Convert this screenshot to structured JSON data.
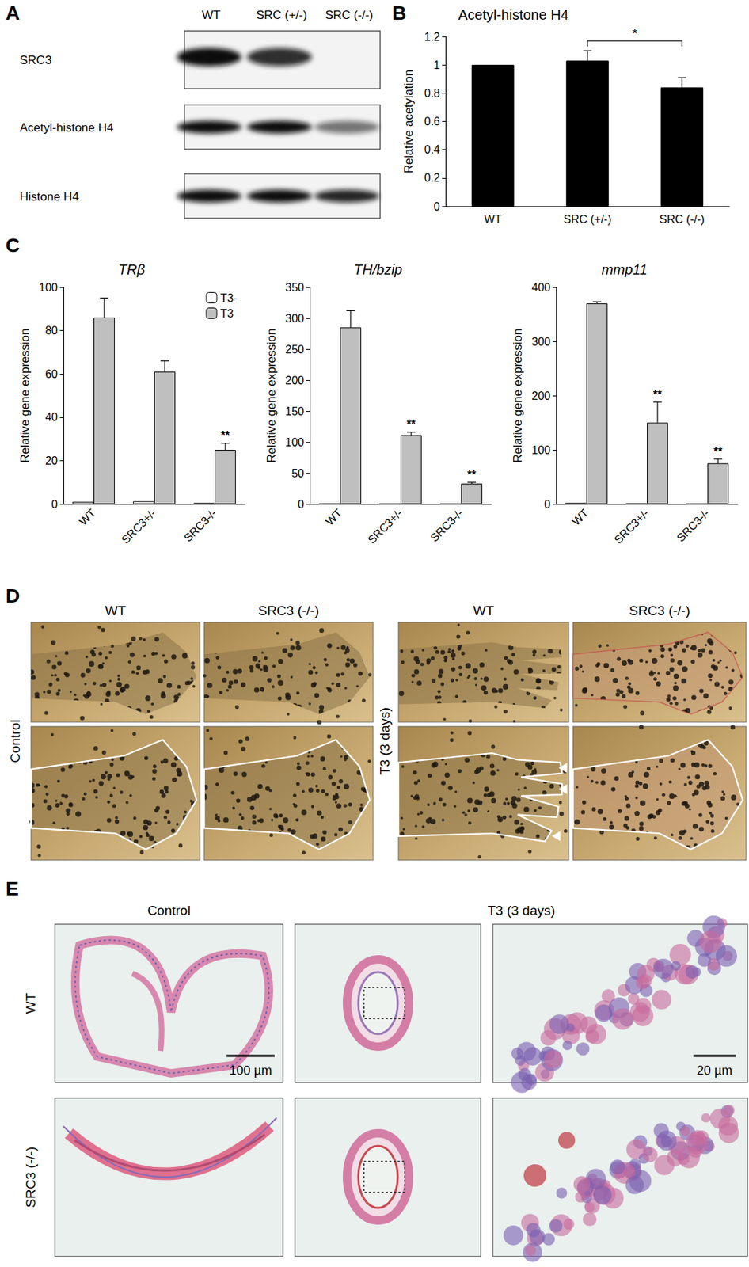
{
  "blot": {
    "panel": "A",
    "lanes": [
      "WT",
      "SRC (+/-)",
      "SRC (-/-)"
    ],
    "rows": [
      "SRC3",
      "Acetyl-histone H4",
      "Histone H4"
    ]
  },
  "chart_data": [
    {
      "panel": "B",
      "type": "bar",
      "title": "Acetyl-histone H4",
      "y_label": "Relative acetylation",
      "categories": [
        "WT",
        "SRC (+/-)",
        "SRC (-/-)"
      ],
      "values": [
        1,
        1.03,
        0.84
      ],
      "errors": [
        null,
        0.07,
        0.07
      ],
      "color": "#000000",
      "ylim": [
        0,
        1.2
      ],
      "yticks": [
        0,
        0.2,
        0.4,
        0.6,
        0.8,
        1,
        1.2
      ],
      "grid": false,
      "comparisons": [
        {
          "from": "SRC (+/-)",
          "to": "SRC (-/-)",
          "label": "*"
        }
      ]
    },
    {
      "panel": "C",
      "type": "bar",
      "title": "TRβ",
      "y_label": "Relative gene expression",
      "categories": [
        "WT",
        "SRC3+/-",
        "SRC3-/-"
      ],
      "series": [
        {
          "name": "T3-",
          "color": "#ffffff",
          "values": [
            1,
            1.2,
            0.5
          ]
        },
        {
          "name": "T3",
          "color": "#bfbfbf",
          "values": [
            86,
            61,
            25
          ],
          "errors": [
            9,
            5,
            3
          ],
          "significance": [
            null,
            null,
            "**"
          ]
        }
      ],
      "ylim": [
        0,
        100
      ],
      "yticks": [
        0,
        20,
        40,
        60,
        80,
        100
      ],
      "grid": false,
      "legend": "upper right"
    },
    {
      "type": "bar",
      "title": "TH/bzip",
      "y_label": "Relative gene expression",
      "categories": [
        "WT",
        "SRC3+/-",
        "SRC3-/-"
      ],
      "series": [
        {
          "name": "T3-",
          "color": "#ffffff",
          "values": [
            1,
            0.5,
            0.3
          ]
        },
        {
          "name": "T3",
          "color": "#bfbfbf",
          "values": [
            285,
            111,
            33
          ],
          "errors": [
            27,
            5,
            2
          ],
          "significance": [
            null,
            "**",
            "**"
          ]
        }
      ],
      "ylim": [
        0,
        350
      ],
      "yticks": [
        0,
        50,
        100,
        150,
        200,
        250,
        300,
        350
      ],
      "grid": false
    },
    {
      "type": "bar",
      "title": "mmp11",
      "y_label": "Relative gene expression",
      "categories": [
        "WT",
        "SRC3+/-",
        "SRC3-/-"
      ],
      "series": [
        {
          "name": "T3-",
          "color": "#ffffff",
          "values": [
            2,
            1.5,
            0.5
          ]
        },
        {
          "name": "T3",
          "color": "#bfbfbf",
          "values": [
            370,
            150,
            75
          ],
          "errors": [
            3,
            38,
            8
          ],
          "significance": [
            null,
            "**",
            "**"
          ]
        }
      ],
      "ylim": [
        0,
        400
      ],
      "yticks": [
        0,
        100,
        200,
        300,
        400
      ],
      "grid": false
    }
  ],
  "limb_photos": {
    "panel": "D",
    "columns": [
      "WT",
      "SRC3 (-/-)"
    ],
    "conditions": [
      "Control",
      "T3 (3 days)"
    ]
  },
  "histology": {
    "panel": "E",
    "columns": [
      "Control",
      "T3 (3 days)"
    ],
    "rows": [
      "WT",
      "SRC3 (-/-)"
    ],
    "scale_bars": [
      "100 µm",
      "20 µm"
    ]
  }
}
